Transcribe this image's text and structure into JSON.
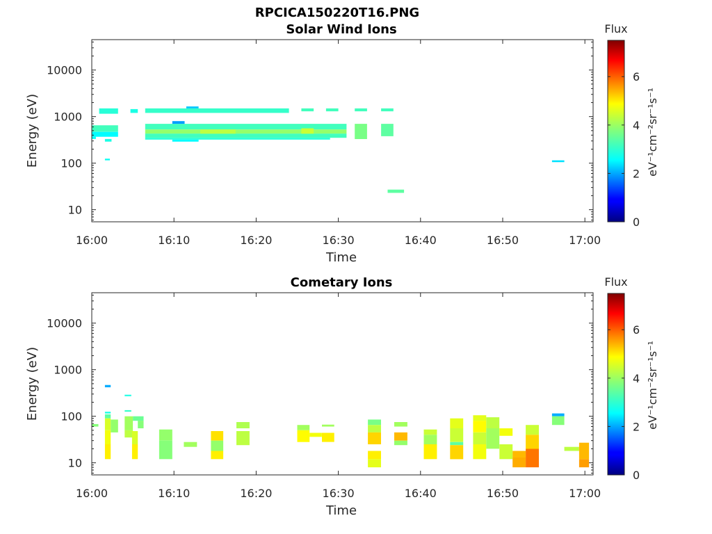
{
  "figure": {
    "title": "RPCICA150220T16.PNG"
  },
  "colorscale": {
    "name": "jet",
    "stops": [
      "#00007f",
      "#0000ff",
      "#007fff",
      "#00ffff",
      "#7fff7f",
      "#ffff00",
      "#ff7f00",
      "#ff0000",
      "#7f0000"
    ]
  },
  "chart_data": [
    {
      "type": "heatmap",
      "title": "Solar Wind Ions",
      "xlabel": "Time",
      "ylabel": "Energy (eV)",
      "xlim": [
        0,
        61
      ],
      "ylim": [
        5.5,
        45000
      ],
      "yscale": "log",
      "xticks": [
        0,
        10,
        20,
        30,
        40,
        50,
        60
      ],
      "xtick_labels": [
        "16:00",
        "16:10",
        "16:20",
        "16:30",
        "16:40",
        "16:50",
        "17:00"
      ],
      "yticks": [
        10,
        100,
        1000,
        10000
      ],
      "ytick_labels": [
        "10",
        "100",
        "1000",
        "10000"
      ],
      "colorbar": {
        "label": "Flux",
        "units": "eV⁻¹cm⁻²sr⁻¹s⁻¹",
        "clim": [
          0,
          7.5
        ],
        "ticks": [
          0,
          2,
          4,
          6
        ]
      },
      "cells_format": "[t_start_min, t_end_min, E_low_eV, E_high_eV, log_flux]",
      "cells": [
        [
          0.0,
          3.2,
          470,
          650,
          3.3
        ],
        [
          0.0,
          3.2,
          370,
          470,
          2.8
        ],
        [
          0.0,
          0.5,
          330,
          370,
          2.9
        ],
        [
          0.9,
          3.2,
          1150,
          1500,
          3.1
        ],
        [
          1.6,
          2.4,
          290,
          330,
          3.0
        ],
        [
          1.6,
          2.2,
          115,
          125,
          2.9
        ],
        [
          4.7,
          5.6,
          1200,
          1450,
          3.0
        ],
        [
          6.5,
          24.0,
          1200,
          1500,
          3.2
        ],
        [
          11.5,
          13.0,
          1500,
          1650,
          2.4
        ],
        [
          6.5,
          31.0,
          530,
          700,
          3.3
        ],
        [
          6.5,
          31.0,
          430,
          530,
          3.9
        ],
        [
          6.5,
          31.0,
          350,
          430,
          3.3
        ],
        [
          6.5,
          29.0,
          320,
          350,
          3.1
        ],
        [
          9.8,
          11.3,
          700,
          800,
          2.1
        ],
        [
          9.8,
          13.0,
          290,
          320,
          2.8
        ],
        [
          13.2,
          17.5,
          430,
          530,
          4.2
        ],
        [
          25.5,
          27.0,
          430,
          560,
          4.3
        ],
        [
          32.0,
          33.5,
          330,
          700,
          3.7
        ],
        [
          32.0,
          33.5,
          1300,
          1500,
          3.3
        ],
        [
          35.2,
          36.7,
          380,
          700,
          3.5
        ],
        [
          35.2,
          36.7,
          1300,
          1500,
          3.3
        ],
        [
          25.5,
          27.0,
          1300,
          1500,
          3.3
        ],
        [
          28.5,
          30.0,
          1300,
          1500,
          3.3
        ],
        [
          36.0,
          38.0,
          23,
          27,
          3.5
        ],
        [
          56.0,
          57.5,
          105,
          115,
          2.6
        ]
      ]
    },
    {
      "type": "heatmap",
      "title": "Cometary Ions",
      "xlabel": "Time",
      "ylabel": "Energy (eV)",
      "xlim": [
        0,
        61
      ],
      "ylim": [
        5.5,
        45000
      ],
      "yscale": "log",
      "xticks": [
        0,
        10,
        20,
        30,
        40,
        50,
        60
      ],
      "xtick_labels": [
        "16:00",
        "16:10",
        "16:20",
        "16:30",
        "16:40",
        "16:50",
        "17:00"
      ],
      "yticks": [
        10,
        100,
        1000,
        10000
      ],
      "ytick_labels": [
        "10",
        "100",
        "1000",
        "10000"
      ],
      "colorbar": {
        "label": "Flux",
        "units": "eV⁻¹cm⁻²sr⁻¹s⁻¹",
        "clim": [
          0,
          7.5
        ],
        "ticks": [
          0,
          2,
          4,
          6
        ]
      },
      "cells_format": "[t_start_min, t_end_min, E_low_eV, E_high_eV, log_flux]",
      "cells": [
        [
          0.0,
          0.8,
          60,
          68,
          3.8
        ],
        [
          1.6,
          2.3,
          420,
          470,
          2.2
        ],
        [
          1.6,
          2.3,
          115,
          125,
          3.0
        ],
        [
          1.6,
          2.3,
          90,
          110,
          3.5
        ],
        [
          1.6,
          2.3,
          50,
          90,
          4.4
        ],
        [
          1.6,
          2.3,
          25,
          50,
          4.6
        ],
        [
          1.6,
          2.3,
          12,
          25,
          4.8
        ],
        [
          2.3,
          3.2,
          45,
          85,
          3.9
        ],
        [
          4.0,
          4.8,
          270,
          290,
          3.0
        ],
        [
          4.0,
          4.8,
          125,
          135,
          3.2
        ],
        [
          4.0,
          5.0,
          50,
          100,
          4.0
        ],
        [
          4.0,
          5.0,
          35,
          50,
          4.2
        ],
        [
          4.9,
          5.6,
          25,
          48,
          4.4
        ],
        [
          4.9,
          5.6,
          12,
          25,
          4.8
        ],
        [
          5.0,
          6.3,
          80,
          100,
          3.6
        ],
        [
          5.6,
          6.3,
          55,
          80,
          3.8
        ],
        [
          8.2,
          9.8,
          30,
          52,
          3.9
        ],
        [
          8.2,
          9.8,
          12,
          30,
          3.8
        ],
        [
          11.2,
          12.8,
          22,
          28,
          4.0
        ],
        [
          14.5,
          16.0,
          30,
          48,
          4.9
        ],
        [
          14.5,
          16.0,
          18,
          30,
          3.9
        ],
        [
          14.5,
          16.0,
          12,
          18,
          4.8
        ],
        [
          17.6,
          19.2,
          55,
          75,
          4.1
        ],
        [
          17.6,
          19.2,
          24,
          48,
          4.2
        ],
        [
          25.0,
          26.5,
          50,
          65,
          4.0
        ],
        [
          25.0,
          26.5,
          28,
          50,
          4.7
        ],
        [
          26.5,
          28.0,
          36,
          44,
          4.6
        ],
        [
          28.0,
          29.5,
          28,
          44,
          4.8
        ],
        [
          28.0,
          29.5,
          60,
          66,
          4.0
        ],
        [
          33.6,
          35.2,
          65,
          85,
          3.7
        ],
        [
          33.6,
          35.2,
          45,
          65,
          4.2
        ],
        [
          33.6,
          35.2,
          25,
          45,
          5.0
        ],
        [
          33.6,
          35.2,
          12,
          18,
          4.8
        ],
        [
          33.6,
          35.2,
          8,
          12,
          4.5
        ],
        [
          36.8,
          38.4,
          60,
          75,
          4.0
        ],
        [
          36.8,
          38.4,
          30,
          45,
          5.2
        ],
        [
          36.8,
          38.4,
          24,
          30,
          3.9
        ],
        [
          40.4,
          42.0,
          40,
          52,
          4.3
        ],
        [
          40.4,
          42.0,
          25,
          40,
          4.0
        ],
        [
          40.4,
          42.0,
          12,
          25,
          4.8
        ],
        [
          43.6,
          45.2,
          55,
          90,
          4.5
        ],
        [
          43.6,
          45.2,
          28,
          55,
          4.3
        ],
        [
          43.6,
          45.2,
          24,
          28,
          3.5
        ],
        [
          43.6,
          45.2,
          12,
          24,
          5.0
        ],
        [
          46.4,
          48.0,
          80,
          105,
          4.5
        ],
        [
          46.4,
          48.0,
          45,
          80,
          4.7
        ],
        [
          46.4,
          48.0,
          25,
          45,
          4.3
        ],
        [
          46.4,
          48.0,
          12,
          25,
          4.6
        ],
        [
          48.0,
          49.6,
          55,
          95,
          4.2
        ],
        [
          48.0,
          49.6,
          20,
          55,
          4.0
        ],
        [
          49.6,
          51.2,
          38,
          55,
          4.6
        ],
        [
          49.6,
          51.2,
          12,
          25,
          4.3
        ],
        [
          51.2,
          52.8,
          13,
          18,
          5.2
        ],
        [
          51.2,
          52.8,
          8,
          13,
          5.3
        ],
        [
          52.8,
          54.4,
          40,
          65,
          4.3
        ],
        [
          52.8,
          54.4,
          20,
          40,
          5.0
        ],
        [
          52.8,
          54.4,
          8,
          20,
          5.7
        ],
        [
          56.0,
          57.5,
          100,
          115,
          2.2
        ],
        [
          56.0,
          57.5,
          65,
          100,
          3.8
        ],
        [
          57.5,
          59.3,
          18,
          22,
          4.2
        ],
        [
          59.3,
          60.5,
          12,
          27,
          5.2
        ],
        [
          59.3,
          60.5,
          8,
          12,
          5.4
        ]
      ]
    }
  ]
}
